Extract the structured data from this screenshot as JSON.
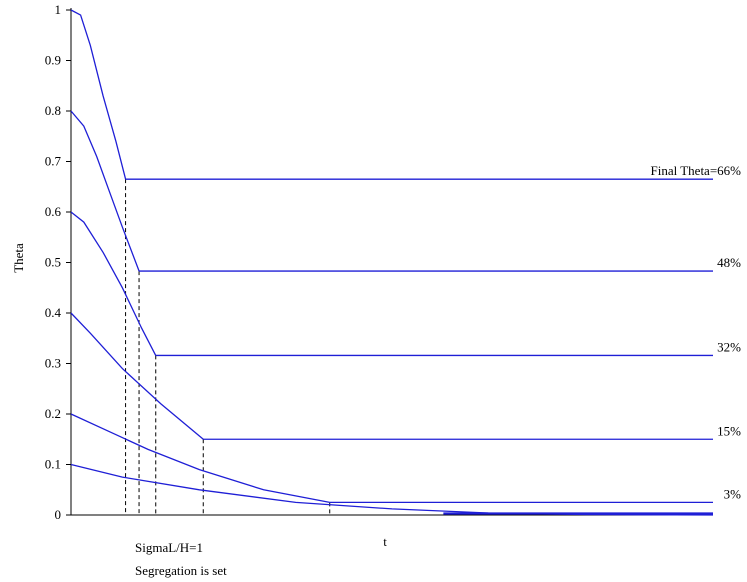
{
  "chart_data": {
    "type": "line",
    "ylabel": "Theta",
    "xlabel": "t",
    "ylim": [
      0,
      1
    ],
    "yticks": [
      0,
      0.1,
      0.2,
      0.3,
      0.4,
      0.5,
      0.6,
      0.7,
      0.8,
      0.9,
      1
    ],
    "ytick_labels": [
      "0",
      "0.1",
      "0.2",
      "0.3",
      "0.4",
      "0.5",
      "0.6",
      "0.7",
      "0.8",
      "0.9",
      "1"
    ],
    "xlim": [
      0,
      100
    ],
    "grid": false,
    "legend": "none",
    "series": [
      {
        "start": 1.0,
        "x_set": 8.5,
        "final": 0.665,
        "label": "Final Theta=66%",
        "curve": [
          [
            0,
            1.0
          ],
          [
            1.5,
            0.99
          ],
          [
            3,
            0.93
          ],
          [
            5,
            0.83
          ],
          [
            7,
            0.74
          ],
          [
            8.5,
            0.665
          ]
        ]
      },
      {
        "start": 0.8,
        "x_set": 10.6,
        "final": 0.483,
        "label": "48%",
        "curve": [
          [
            0,
            0.8
          ],
          [
            2,
            0.77
          ],
          [
            4,
            0.71
          ],
          [
            6,
            0.64
          ],
          [
            8,
            0.57
          ],
          [
            10.6,
            0.483
          ]
        ]
      },
      {
        "start": 0.6,
        "x_set": 13.2,
        "final": 0.316,
        "label": "32%",
        "curve": [
          [
            0,
            0.6
          ],
          [
            2,
            0.58
          ],
          [
            5,
            0.52
          ],
          [
            8,
            0.45
          ],
          [
            11,
            0.37
          ],
          [
            13.2,
            0.316
          ]
        ]
      },
      {
        "start": 0.4,
        "x_set": 20.6,
        "final": 0.15,
        "label": "15%",
        "curve": [
          [
            0,
            0.4
          ],
          [
            3,
            0.36
          ],
          [
            8,
            0.29
          ],
          [
            14,
            0.22
          ],
          [
            20.6,
            0.15
          ]
        ]
      },
      {
        "start": 0.2,
        "x_set": 40.3,
        "final": 0.025,
        "label": "3%",
        "curve": [
          [
            0,
            0.2
          ],
          [
            6,
            0.165
          ],
          [
            12,
            0.13
          ],
          [
            20,
            0.09
          ],
          [
            30,
            0.05
          ],
          [
            40.3,
            0.025
          ]
        ]
      },
      {
        "start": 0.1,
        "x_set": 100,
        "final": 0.0,
        "label": "",
        "curve": [
          [
            0,
            0.1
          ],
          [
            8,
            0.075
          ],
          [
            20,
            0.05
          ],
          [
            35,
            0.025
          ],
          [
            50,
            0.012
          ],
          [
            65,
            0.004
          ],
          [
            80,
            0.001
          ],
          [
            100,
            0.0
          ]
        ]
      }
    ],
    "annotations": [
      "SigmaL/H=1",
      "Segregation is set"
    ]
  }
}
